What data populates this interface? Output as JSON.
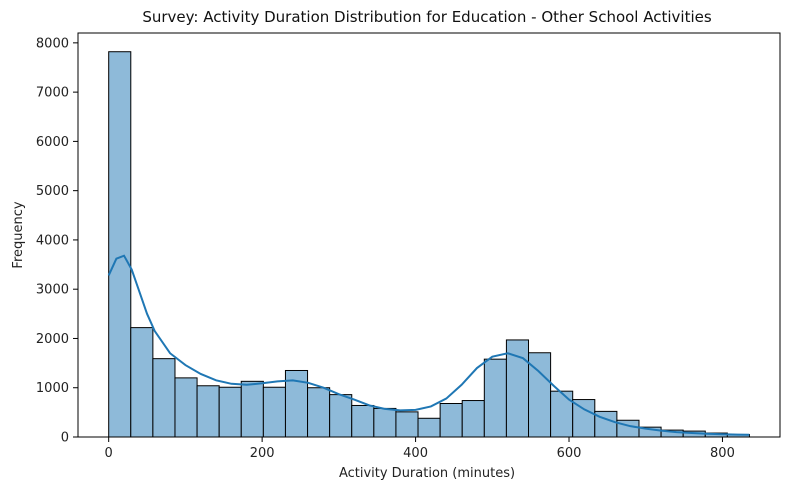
{
  "chart_data": {
    "type": "bar",
    "subtype": "histogram",
    "title": "Survey: Activity Duration Distribution for Education - Other School Activities",
    "xlabel": "Activity Duration (minutes)",
    "ylabel": "Frequency",
    "xlim": [
      -40,
      875
    ],
    "ylim": [
      0,
      8200
    ],
    "xticks": [
      0,
      200,
      400,
      600,
      800
    ],
    "yticks": [
      0,
      1000,
      2000,
      3000,
      4000,
      5000,
      6000,
      7000,
      8000
    ],
    "grid": false,
    "colors": {
      "bar_fill": "#8ebad9",
      "bar_edge": "#000000",
      "kde_line": "#1f77b4"
    },
    "bins": [
      {
        "x0": 0,
        "x1": 28.8,
        "value": 7820
      },
      {
        "x0": 28.8,
        "x1": 57.6,
        "value": 2220
      },
      {
        "x0": 57.6,
        "x1": 86.4,
        "value": 1590
      },
      {
        "x0": 86.4,
        "x1": 115.2,
        "value": 1200
      },
      {
        "x0": 115.2,
        "x1": 144.0,
        "value": 1040
      },
      {
        "x0": 144.0,
        "x1": 172.8,
        "value": 1010
      },
      {
        "x0": 172.8,
        "x1": 201.6,
        "value": 1130
      },
      {
        "x0": 201.6,
        "x1": 230.4,
        "value": 1010
      },
      {
        "x0": 230.4,
        "x1": 259.2,
        "value": 1350
      },
      {
        "x0": 259.2,
        "x1": 288.0,
        "value": 1000
      },
      {
        "x0": 288.0,
        "x1": 316.8,
        "value": 860
      },
      {
        "x0": 316.8,
        "x1": 345.6,
        "value": 640
      },
      {
        "x0": 345.6,
        "x1": 374.4,
        "value": 580
      },
      {
        "x0": 374.4,
        "x1": 403.2,
        "value": 510
      },
      {
        "x0": 403.2,
        "x1": 432.0,
        "value": 380
      },
      {
        "x0": 432.0,
        "x1": 460.8,
        "value": 680
      },
      {
        "x0": 460.8,
        "x1": 489.6,
        "value": 740
      },
      {
        "x0": 489.6,
        "x1": 518.4,
        "value": 1580
      },
      {
        "x0": 518.4,
        "x1": 547.2,
        "value": 1970
      },
      {
        "x0": 547.2,
        "x1": 576.0,
        "value": 1710
      },
      {
        "x0": 576.0,
        "x1": 604.8,
        "value": 930
      },
      {
        "x0": 604.8,
        "x1": 633.6,
        "value": 760
      },
      {
        "x0": 633.6,
        "x1": 662.4,
        "value": 520
      },
      {
        "x0": 662.4,
        "x1": 691.2,
        "value": 340
      },
      {
        "x0": 691.2,
        "x1": 720.0,
        "value": 200
      },
      {
        "x0": 720.0,
        "x1": 748.8,
        "value": 140
      },
      {
        "x0": 748.8,
        "x1": 777.6,
        "value": 120
      },
      {
        "x0": 777.6,
        "x1": 806.4,
        "value": 80
      },
      {
        "x0": 806.4,
        "x1": 835.2,
        "value": 50
      }
    ],
    "kde": {
      "x": [
        0,
        10,
        20,
        30,
        40,
        50,
        60,
        80,
        100,
        120,
        140,
        160,
        180,
        200,
        220,
        240,
        260,
        280,
        300,
        320,
        340,
        360,
        380,
        400,
        420,
        440,
        460,
        480,
        500,
        520,
        540,
        560,
        580,
        600,
        620,
        640,
        660,
        680,
        700,
        720,
        740,
        760,
        780,
        800,
        820,
        835
      ],
      "y": [
        3280,
        3620,
        3680,
        3400,
        2950,
        2500,
        2150,
        1700,
        1460,
        1280,
        1150,
        1080,
        1060,
        1090,
        1130,
        1150,
        1100,
        1000,
        870,
        760,
        640,
        570,
        540,
        550,
        620,
        780,
        1060,
        1400,
        1630,
        1700,
        1600,
        1340,
        1040,
        760,
        560,
        410,
        300,
        220,
        170,
        130,
        100,
        80,
        65,
        55,
        48,
        45
      ]
    }
  }
}
